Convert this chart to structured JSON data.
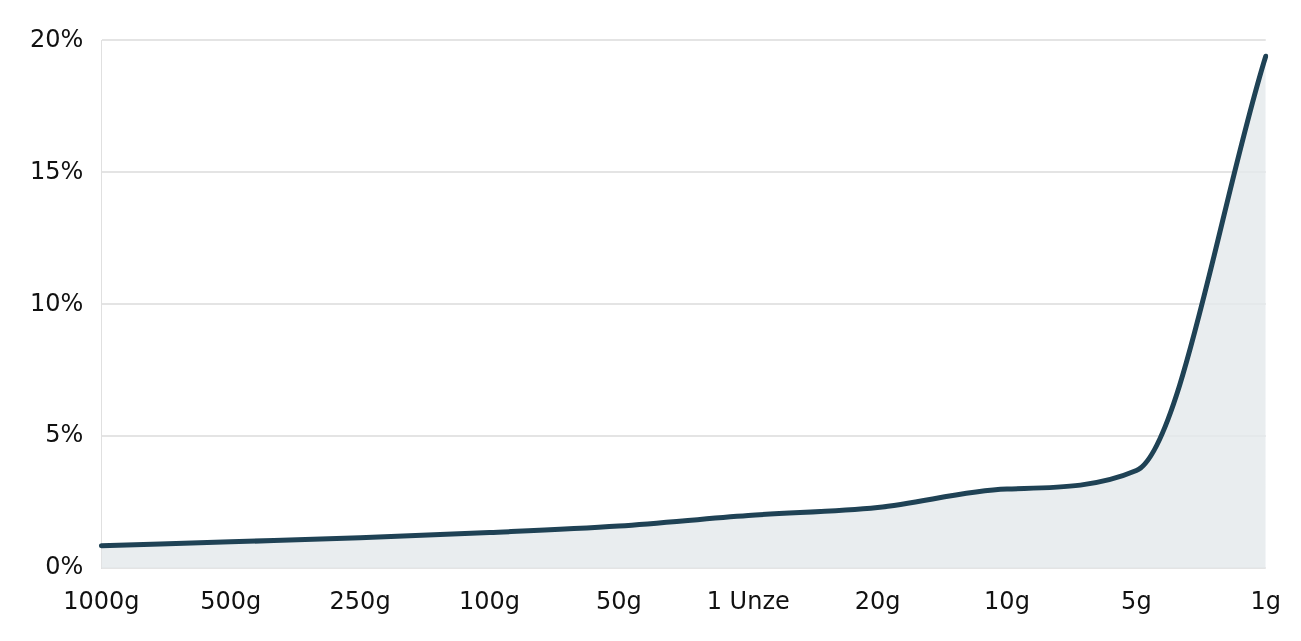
{
  "chart_data": {
    "type": "area",
    "categories": [
      "1000g",
      "500g",
      "250g",
      "100g",
      "50g",
      "1 Unze",
      "20g",
      "10g",
      "5g",
      "1g"
    ],
    "series": [
      {
        "color": "#1f4255",
        "values": [
          0.85,
          1.0,
          1.15,
          1.35,
          1.6,
          2.0,
          2.3,
          3.0,
          3.7,
          19.4
        ]
      }
    ],
    "ylim": [
      0,
      20
    ],
    "yticks": [
      {
        "value": 0,
        "label": "0%"
      },
      {
        "value": 5,
        "label": "5%"
      },
      {
        "value": 10,
        "label": "10%"
      },
      {
        "value": 15,
        "label": "15%"
      },
      {
        "value": 20,
        "label": "20%"
      }
    ],
    "grid": "y",
    "legend": false,
    "marker": "none",
    "line_style": "solid"
  }
}
